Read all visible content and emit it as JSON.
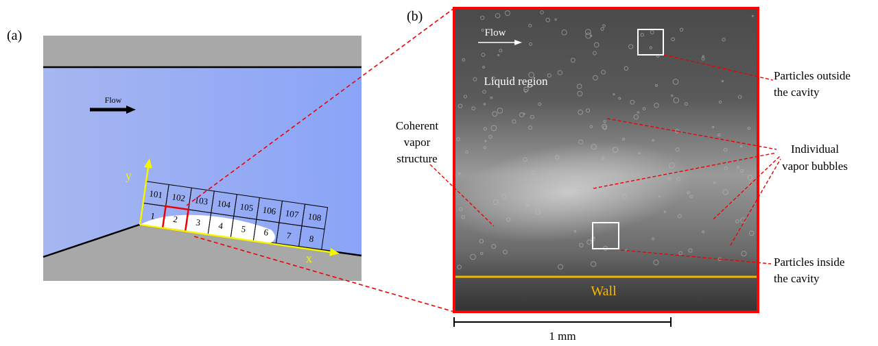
{
  "panel_a": {
    "label": "(a)",
    "flow": "Flow",
    "axis_x": "x",
    "axis_y": "y",
    "cells_top": [
      "101",
      "102",
      "103",
      "104",
      "105",
      "106",
      "107",
      "108"
    ],
    "cells_bottom": [
      "1",
      "2",
      "3",
      "4",
      "5",
      "6",
      "7",
      "8"
    ]
  },
  "panel_b": {
    "label": "(b)",
    "flow": "Flow",
    "liquid_region": "Liquid region",
    "coherent": [
      "Coherent",
      "vapor",
      "structure"
    ],
    "particles_outside": [
      "Particles outside",
      "the cavity"
    ],
    "individual_bubbles": [
      "Individual",
      "vapor bubbles"
    ],
    "particles_inside": [
      "Particles inside",
      "the cavity"
    ],
    "wall": "Wall",
    "scale": "1 mm"
  }
}
